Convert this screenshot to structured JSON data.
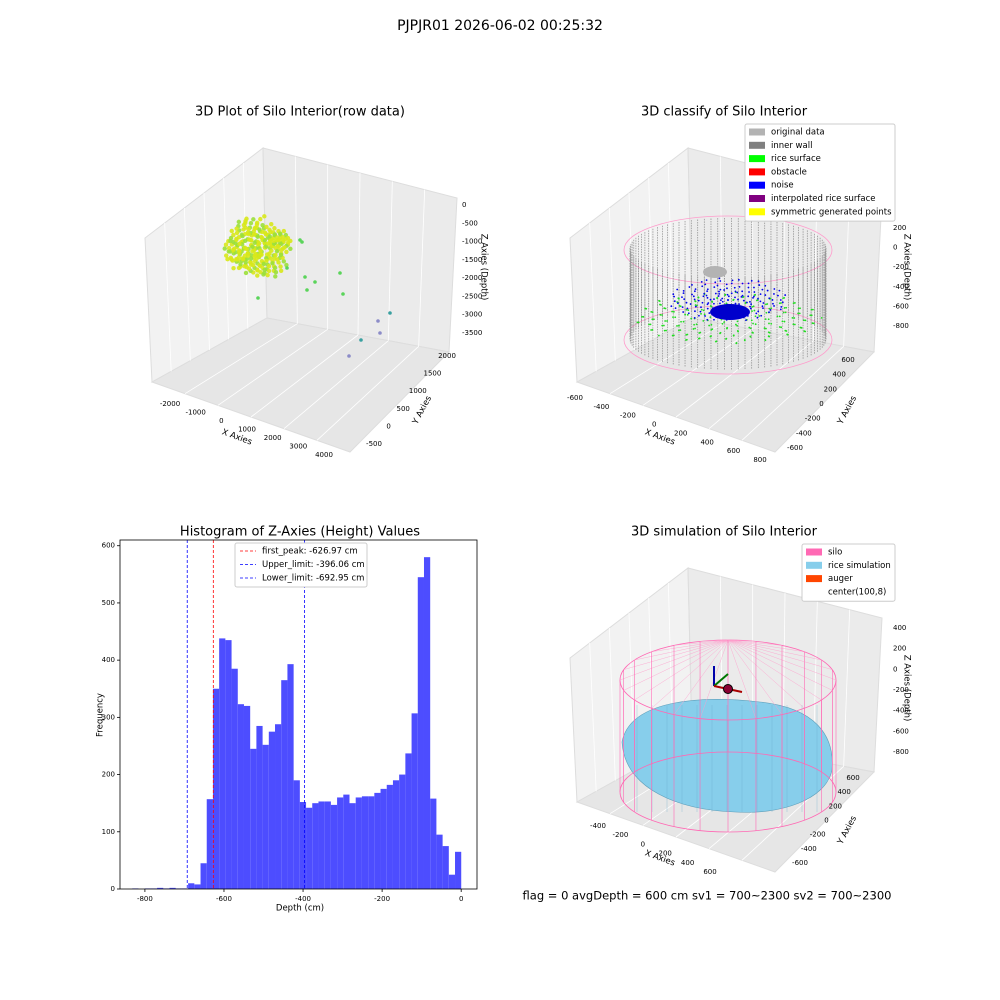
{
  "title": "PJPJR01 2026-06-02 00:25:32",
  "footer": "flag = 0     avgDepth = 600 cm  sv1 = 700~2300  sv2 = 700~2300",
  "chart_data": [
    {
      "type": "scatter3d",
      "title": "3D Plot of Silo Interior(row data)",
      "xlabel": "X Axies",
      "ylabel": "Y Axies",
      "zlabel": "Z Axies (Depth)",
      "xticks": [
        -2000,
        -1000,
        0,
        1000,
        2000,
        3000,
        4000
      ],
      "yticks": [
        -500,
        0,
        500,
        1000,
        1500,
        2000
      ],
      "zticks": [
        0,
        -500,
        -1000,
        -1500,
        -2000,
        -2500,
        -3000,
        -3500
      ]
    },
    {
      "type": "scatter3d",
      "title": "3D classify of Silo Interior",
      "xlabel": "X Axies",
      "ylabel": "Y Axies",
      "zlabel": "Z Axies (Depth)",
      "xticks": [
        -600,
        -400,
        -200,
        0,
        200,
        400,
        600,
        800
      ],
      "yticks": [
        -600,
        -400,
        -200,
        0,
        200,
        400,
        600
      ],
      "zticks": [
        200,
        0,
        -200,
        -400,
        -600,
        -800
      ],
      "legend": [
        {
          "name": "original data",
          "color": "#b3b3b3"
        },
        {
          "name": "inner wall",
          "color": "#808080"
        },
        {
          "name": "rice surface",
          "color": "#00ff00"
        },
        {
          "name": "obstacle",
          "color": "#ff0000"
        },
        {
          "name": "noise",
          "color": "#0000ff"
        },
        {
          "name": "interpolated rice surface",
          "color": "#800080"
        },
        {
          "name": "symmetric generated points",
          "color": "#ffff00"
        }
      ]
    },
    {
      "type": "histogram",
      "title": "Histogram of Z-Axies (Height) Values",
      "xlabel": "Depth (cm)",
      "ylabel": "Frequency",
      "color": "#4d4dff",
      "bins": [
        -832,
        -816.3,
        -800.6,
        -784.9,
        -769.2,
        -753.5,
        -737.8,
        -722.1,
        -706.4,
        -690.7,
        -675,
        -659.3,
        -643.6,
        -627.9,
        -612.2,
        -596.5,
        -580.8,
        -565.1,
        -549.4,
        -533.7,
        -518,
        -502.3,
        -486.6,
        -470.9,
        -455.2,
        -439.5,
        -423.8,
        -408.1,
        -392.4,
        -376.7,
        -361,
        -345.3,
        -329.6,
        -313.9,
        -298.2,
        -282.5,
        -266.8,
        -251.1,
        -235.4,
        -219.7,
        -204,
        -188.3,
        -172.6,
        -156.9,
        -141.2,
        -125.5,
        -109.8,
        -94.1,
        -78.4,
        -62.7,
        -47,
        -31.3,
        -15.6,
        0.1
      ],
      "values": [
        1,
        0,
        1,
        1,
        2,
        1,
        2,
        1,
        1,
        10,
        8,
        45,
        157,
        350,
        438,
        435,
        385,
        323,
        320,
        245,
        285,
        252,
        275,
        288,
        365,
        393,
        190,
        152,
        142,
        150,
        153,
        153,
        147,
        160,
        165,
        150,
        160,
        162,
        162,
        168,
        175,
        182,
        190,
        200,
        237,
        307,
        545,
        580,
        158,
        95,
        75,
        25,
        65
      ],
      "xlim": [
        -863,
        40
      ],
      "ylim": [
        0,
        610
      ],
      "xticks": [
        -800,
        -600,
        -400,
        -200,
        0
      ],
      "yticks": [
        0,
        100,
        200,
        300,
        400,
        500,
        600
      ],
      "vlines": [
        {
          "name": "first_peak: -626.97 cm",
          "value": -626.97,
          "color": "#ff0000"
        },
        {
          "name": "Upper_limit: -396.06 cm",
          "value": -396.06,
          "color": "#0000ff"
        },
        {
          "name": "Lower_limit: -692.95 cm",
          "value": -692.95,
          "color": "#0000ff"
        }
      ]
    },
    {
      "type": "surface3d",
      "title": "3D simulation of Silo Interior",
      "xlabel": "X Axies",
      "ylabel": "Y Axies",
      "zlabel": "Z Axies (Depth)",
      "xticks": [
        -400,
        -200,
        0,
        200,
        400,
        600
      ],
      "yticks": [
        -600,
        -400,
        -200,
        0,
        200,
        400,
        600
      ],
      "zticks": [
        400,
        200,
        0,
        -200,
        -400,
        -600,
        -800
      ],
      "legend": [
        {
          "name": "silo",
          "color": "#ff69b4"
        },
        {
          "name": "rice simulation",
          "color": "#87ceeb"
        },
        {
          "name": "auger",
          "color": "#ff4500"
        },
        {
          "name": "center(100,8)",
          "color": "#ffffff"
        }
      ]
    }
  ]
}
